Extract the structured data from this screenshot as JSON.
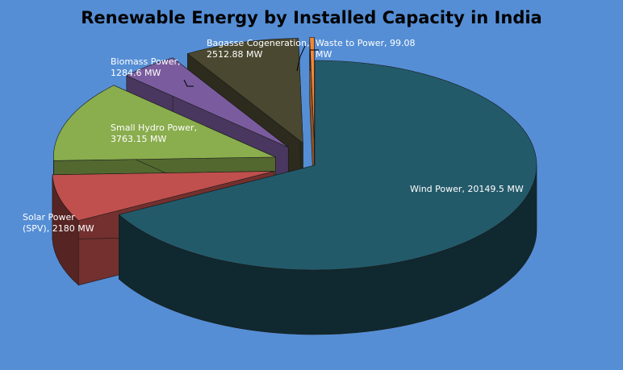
{
  "chart_data": {
    "type": "pie",
    "title": "Renewable Energy by Installed Capacity in India",
    "unit": "MW",
    "exploded": true,
    "style": "3d",
    "slices": [
      {
        "name": "Wind Power",
        "value": 20149.5,
        "color": "#235a6a",
        "label_lines": [
          "Wind Power, 20149.5 MW"
        ]
      },
      {
        "name": "Solar Power (SPV)",
        "value": 2180,
        "color": "#c0504d",
        "label_lines": [
          "Solar Power",
          "(SPV), 2180 MW"
        ]
      },
      {
        "name": "Small Hydro Power",
        "value": 3763.15,
        "color": "#8aad4e",
        "label_lines": [
          "Small Hydro Power,",
          "3763.15 MW"
        ]
      },
      {
        "name": "Biomass Power",
        "value": 1284.6,
        "color": "#7a5c9e",
        "label_lines": [
          "Biomass Power,",
          "1284.6 MW"
        ]
      },
      {
        "name": "Bagasse Cogeneration",
        "value": 2512.88,
        "color": "#4a4830",
        "label_lines": [
          "Bagasse Cogeneration,",
          "2512.88 MW"
        ]
      },
      {
        "name": "Waste to Power",
        "value": 99.08,
        "color": "#f0883a",
        "label_lines": [
          "Waste to Power, 99.08",
          "MW"
        ]
      }
    ]
  }
}
